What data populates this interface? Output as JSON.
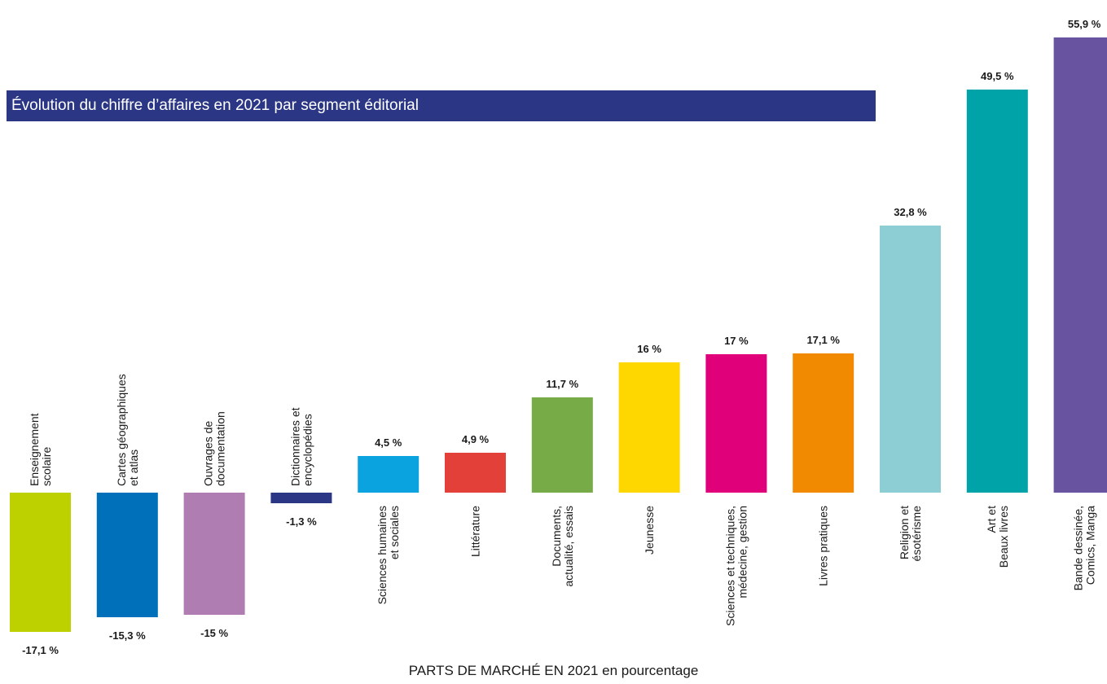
{
  "chart_data": {
    "type": "bar",
    "title": "Évolution du chiffre d’affaires en 2021 par segment éditorial",
    "xlabel": "PARTS DE MARCHÉ EN 2021 en pourcentage",
    "ylabel": "",
    "ylim": [
      -17.1,
      55.9
    ],
    "grid": false,
    "colors": {
      "title_band": "#2b3684"
    },
    "bars": [
      {
        "category": [
          "Enseignement",
          "scolaire"
        ],
        "value": -17.1,
        "value_label": "-17,1 %",
        "color": "#bdd100"
      },
      {
        "category": [
          "Cartes géographiques",
          "et atlas"
        ],
        "value": -15.3,
        "value_label": "-15,3 %",
        "color": "#0070bb"
      },
      {
        "category": [
          "Ouvrages de",
          "documentation"
        ],
        "value": -15.0,
        "value_label": "-15 %",
        "color": "#b07db3"
      },
      {
        "category": [
          "Dictionnaires et",
          "encyclopédies"
        ],
        "value": -1.3,
        "value_label": "-1,3 %",
        "color": "#2b3684"
      },
      {
        "category": [
          "Sciences humaines",
          "et sociales"
        ],
        "value": 4.5,
        "value_label": "4,5 %",
        "color": "#0aa3e0"
      },
      {
        "category": [
          "Littérature"
        ],
        "value": 4.9,
        "value_label": "4,9 %",
        "color": "#e4403a"
      },
      {
        "category": [
          "Documents,",
          "actualité, essais"
        ],
        "value": 11.7,
        "value_label": "11,7 %",
        "color": "#77ab47"
      },
      {
        "category": [
          "Jeunesse"
        ],
        "value": 16.0,
        "value_label": "16 %",
        "color": "#fed600"
      },
      {
        "category": [
          "Sciences et techniques,",
          "médecine, gestion"
        ],
        "value": 17.0,
        "value_label": "17 %",
        "color": "#df007a"
      },
      {
        "category": [
          "Livres pratiques"
        ],
        "value": 17.1,
        "value_label": "17,1 %",
        "color": "#f18a00"
      },
      {
        "category": [
          "Religion et",
          "ésotérisme"
        ],
        "value": 32.8,
        "value_label": "32,8 %",
        "color": "#8dcdd4"
      },
      {
        "category": [
          "Art et",
          "Beaux livres"
        ],
        "value": 49.5,
        "value_label": "49,5 %",
        "color": "#00a3a7"
      },
      {
        "category": [
          "Bande dessinée,",
          "Comics, Manga"
        ],
        "value": 55.9,
        "value_label": "55,9 %",
        "color": "#67539f"
      }
    ]
  }
}
